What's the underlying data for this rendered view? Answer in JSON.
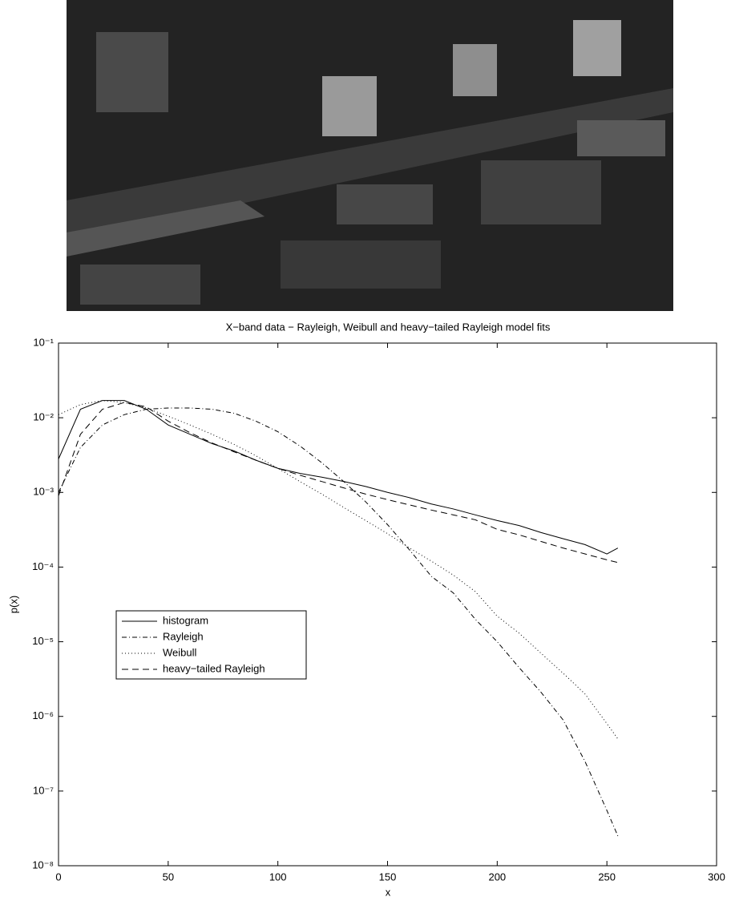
{
  "chart_data": {
    "type": "line",
    "title": "X−band data − Rayleigh, Weibull and heavy−tailed Rayleigh model fits",
    "xlabel": "x",
    "ylabel": "p(x)",
    "x": [
      0,
      10,
      20,
      30,
      40,
      50,
      60,
      70,
      80,
      90,
      100,
      110,
      120,
      130,
      140,
      150,
      160,
      170,
      180,
      190,
      200,
      210,
      220,
      230,
      240,
      250,
      255
    ],
    "series": [
      {
        "name": "histogram",
        "color": "#000000",
        "style": "-",
        "values": [
          0.0028,
          0.013,
          0.017,
          0.017,
          0.013,
          0.008,
          0.006,
          0.0045,
          0.0036,
          0.0027,
          0.0021,
          0.0018,
          0.0016,
          0.0014,
          0.0012,
          0.001,
          0.00085,
          0.0007,
          0.0006,
          0.0005,
          0.00042,
          0.00036,
          0.00029,
          0.00024,
          0.0002,
          0.00015,
          0.00018
        ]
      },
      {
        "name": "Rayleigh",
        "color": "#000000",
        "style": "-.",
        "values": [
          0.001,
          0.004,
          0.008,
          0.011,
          0.013,
          0.0135,
          0.0135,
          0.013,
          0.0115,
          0.009,
          0.0065,
          0.0042,
          0.0025,
          0.0014,
          0.00075,
          0.00037,
          0.00017,
          7.5e-05,
          4.5e-05,
          2e-05,
          1e-05,
          4.5e-06,
          2.1e-06,
          9e-07,
          2.5e-07,
          5.5e-08,
          2.5e-08
        ]
      },
      {
        "name": "Weibull",
        "color": "#000000",
        "style": ":",
        "values": [
          0.011,
          0.015,
          0.017,
          0.016,
          0.0135,
          0.0105,
          0.008,
          0.006,
          0.0044,
          0.0031,
          0.0021,
          0.0014,
          0.00095,
          0.00063,
          0.00042,
          0.00028,
          0.00018,
          0.00012,
          7.8e-05,
          4.7e-05,
          2.2e-05,
          1.3e-05,
          7e-06,
          3.8e-06,
          2e-06,
          8e-07,
          5e-07
        ]
      },
      {
        "name": "heavy−tailed Rayleigh",
        "color": "#000000",
        "style": "--",
        "values": [
          0.0009,
          0.006,
          0.013,
          0.016,
          0.014,
          0.009,
          0.0063,
          0.0046,
          0.0035,
          0.0027,
          0.0021,
          0.0017,
          0.0014,
          0.00115,
          0.00095,
          0.0008,
          0.00068,
          0.00058,
          0.0005,
          0.00043,
          0.00032,
          0.00027,
          0.00022,
          0.00018,
          0.00015,
          0.000125,
          0.000115
        ]
      }
    ],
    "xlim": [
      0,
      300
    ],
    "xticks": [
      0,
      50,
      100,
      150,
      200,
      250,
      300
    ],
    "ylim": [
      1e-08,
      0.1
    ],
    "yscale": "log",
    "yticks": [
      {
        "value": 1e-08,
        "label": "10⁻⁸"
      },
      {
        "value": 1e-07,
        "label": "10⁻⁷"
      },
      {
        "value": 1e-06,
        "label": "10⁻⁶"
      },
      {
        "value": 1e-05,
        "label": "10⁻⁵"
      },
      {
        "value": 0.0001,
        "label": "10⁻⁴"
      },
      {
        "value": 0.001,
        "label": "10⁻³"
      },
      {
        "value": 0.01,
        "label": "10⁻²"
      },
      {
        "value": 0.1,
        "label": "10⁻¹"
      }
    ],
    "legend": "lower-left",
    "grid": false
  }
}
